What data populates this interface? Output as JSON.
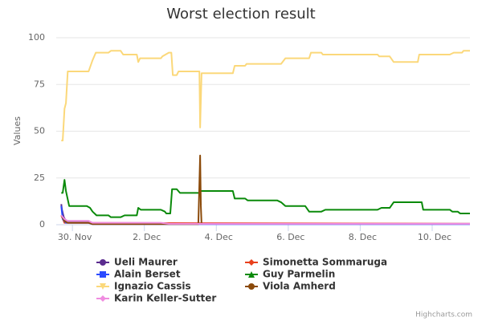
{
  "chart_data": {
    "type": "line",
    "title": "Worst election result",
    "y_axis_label": "Values",
    "credits": "Highcharts.com",
    "xlim": [
      29.55,
      41.05
    ],
    "xticks": [
      {
        "value": 30,
        "label": "30. Nov"
      },
      {
        "value": 32,
        "label": "2. Dec"
      },
      {
        "value": 34,
        "label": "4. Dec"
      },
      {
        "value": 36,
        "label": "6. Dec"
      },
      {
        "value": 38,
        "label": "8. Dec"
      },
      {
        "value": 40,
        "label": "10. Dec"
      }
    ],
    "ylim": [
      0,
      100
    ],
    "yticks": [
      0,
      25,
      50,
      75,
      100
    ],
    "grid": true,
    "series": [
      {
        "name": "Ueli Maurer",
        "color": "#5b2c8f",
        "marker": "circle",
        "x": [
          29.69,
          29.71,
          29.76,
          29.82,
          30.45,
          30.56,
          41.05
        ],
        "values": [
          11,
          8,
          4,
          2,
          2,
          0.5,
          0.5
        ]
      },
      {
        "name": "Simonetta Sommaruga",
        "color": "#e8401c",
        "marker": "diamond",
        "x": [
          29.69,
          29.78,
          41.05
        ],
        "values": [
          5,
          1,
          0.5
        ]
      },
      {
        "name": "Alain Berset",
        "color": "#2b4bff",
        "marker": "square",
        "x": [
          29.69,
          29.73,
          29.82,
          30.45,
          30.56,
          41.05
        ],
        "values": [
          10,
          3,
          1,
          1,
          0.3,
          0.3
        ]
      },
      {
        "name": "Guy Parmelin",
        "color": "#0a8a0a",
        "marker": "triangle",
        "x": [
          29.69,
          29.73,
          29.78,
          29.82,
          29.91,
          30.4,
          30.49,
          30.56,
          30.67,
          31.0,
          31.07,
          31.34,
          31.45,
          31.79,
          31.83,
          31.9,
          32.46,
          32.57,
          32.61,
          32.72,
          32.77,
          32.9,
          32.99,
          33.53,
          33.57,
          34.46,
          34.51,
          34.8,
          34.87,
          35.69,
          35.8,
          35.92,
          36.47,
          36.58,
          36.92,
          37.03,
          38.48,
          38.59,
          38.82,
          38.93,
          39.71,
          39.75,
          40.49,
          40.56,
          40.71,
          40.78,
          41.05
        ],
        "values": [
          17,
          17,
          24,
          18,
          10,
          10,
          9,
          7,
          5,
          5,
          4,
          4,
          5,
          5,
          9,
          8,
          8,
          7,
          6,
          6,
          19,
          19,
          17,
          17,
          18,
          18,
          14,
          14,
          13,
          13,
          12,
          10,
          10,
          7,
          7,
          8,
          8,
          9,
          9,
          12,
          12,
          8,
          8,
          7,
          7,
          6,
          6
        ]
      },
      {
        "name": "Ignazio Cassis",
        "color": "#fbd87a",
        "marker": "triangle-down",
        "x": [
          29.69,
          29.73,
          29.78,
          29.82,
          29.87,
          30.45,
          30.56,
          30.65,
          31.0,
          31.07,
          31.34,
          31.41,
          31.79,
          31.83,
          31.88,
          32.46,
          32.5,
          32.68,
          32.75,
          32.79,
          32.9,
          32.95,
          33.53,
          33.55,
          33.59,
          34.46,
          34.51,
          34.8,
          34.84,
          35.8,
          35.92,
          36.58,
          36.63,
          36.92,
          36.96,
          38.04,
          38.48,
          38.53,
          38.82,
          38.93,
          39.6,
          39.64,
          40.49,
          40.6,
          40.83,
          40.87,
          41.05
        ],
        "values": [
          45,
          45,
          62,
          65,
          82,
          82,
          88,
          92,
          92,
          93,
          93,
          91,
          91,
          87,
          89,
          89,
          90,
          92,
          92,
          80,
          80,
          82,
          82,
          52,
          81,
          81,
          85,
          85,
          86,
          86,
          89,
          89,
          92,
          92,
          91,
          91,
          91,
          90,
          90,
          87,
          87,
          91,
          91,
          92,
          92,
          93,
          93
        ]
      },
      {
        "name": "Viola Amherd",
        "color": "#8b4a0a",
        "marker": "circle",
        "x": [
          29.69,
          29.78,
          29.87,
          30.45,
          30.56,
          33.5,
          33.55,
          33.57,
          33.59
        ],
        "values": [
          5,
          2,
          1,
          1,
          0.3,
          0.3,
          37,
          10,
          0
        ]
      },
      {
        "name": "Karin Keller-Sutter",
        "color": "#f08ce0",
        "marker": "diamond",
        "x": [
          29.69,
          29.78,
          29.87,
          30.45,
          30.56,
          32.46,
          32.68,
          41.05
        ],
        "values": [
          5,
          3,
          2,
          2,
          1,
          1,
          0.5,
          0.5
        ]
      }
    ]
  }
}
